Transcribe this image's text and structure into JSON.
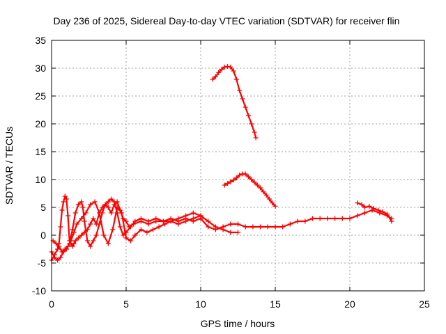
{
  "chart_data": {
    "type": "scatter",
    "title": "Day 236 of 2025, Sidereal Day-to-day VTEC variation (SDTVAR) for receiver flin",
    "xlabel": "GPS time / hours",
    "ylabel": "SDTVAR / TECUs",
    "xlim": [
      0,
      25
    ],
    "ylim": [
      -10,
      35
    ],
    "xticks": [
      0,
      5,
      10,
      15,
      20,
      25
    ],
    "yticks": [
      -10,
      -5,
      0,
      5,
      10,
      15,
      20,
      25,
      30,
      35
    ],
    "xtick_labels": [
      "0",
      "5",
      "10",
      "15",
      "20",
      "25"
    ],
    "ytick_labels": [
      "-10",
      "-5",
      "0",
      "5",
      "10",
      "15",
      "20",
      "25",
      "30",
      "35"
    ],
    "grid": true,
    "marker": "+",
    "color": "#ff0000",
    "series": [
      {
        "name": "track-1",
        "x": [
          0.0,
          0.2,
          0.4,
          0.5,
          0.6,
          0.7,
          0.8,
          0.9,
          1.0,
          1.1,
          1.2,
          1.3,
          1.4,
          1.5,
          1.6,
          1.8,
          2.0,
          2.2,
          2.4,
          2.6,
          2.8,
          3.0,
          3.2,
          3.4,
          3.6,
          3.8,
          4.0,
          4.2,
          4.4,
          4.6,
          4.8,
          5.0,
          5.2,
          5.5,
          6.0,
          6.5,
          7.0,
          7.5,
          8.0,
          8.5,
          9.0,
          9.5,
          10.0,
          10.5,
          11.0,
          11.5,
          12.0,
          12.5,
          13.0,
          13.5,
          14.0,
          14.5,
          15.0,
          15.5,
          16.0,
          16.5,
          17.0,
          17.5,
          18.0,
          18.5,
          19.0,
          19.5,
          20.0,
          20.5,
          21.0,
          21.5,
          22.0,
          22.5,
          22.8
        ],
        "y": [
          -4.5,
          -3.5,
          -2.5,
          -1.5,
          1.5,
          4.5,
          6.0,
          7.0,
          6.5,
          3.5,
          -1.0,
          -1.5,
          -2.0,
          -1.5,
          -1.0,
          -0.5,
          0.0,
          0.5,
          1.0,
          2.0,
          3.0,
          2.0,
          4.0,
          5.0,
          5.5,
          5.0,
          4.0,
          5.5,
          6.0,
          4.5,
          3.0,
          2.5,
          1.5,
          2.0,
          2.5,
          2.0,
          2.5,
          2.5,
          3.0,
          2.5,
          3.0,
          2.5,
          3.0,
          1.5,
          1.0,
          1.5,
          2.0,
          2.0,
          1.5,
          1.5,
          1.5,
          1.5,
          1.5,
          1.5,
          2.0,
          2.5,
          2.5,
          3.0,
          3.0,
          3.0,
          3.0,
          3.0,
          3.0,
          3.5,
          4.0,
          4.5,
          4.0,
          3.5,
          3.0
        ]
      },
      {
        "name": "track-2",
        "x": [
          0.0,
          0.2,
          0.4,
          0.6,
          0.8,
          1.0,
          1.2,
          1.4,
          1.6,
          1.8,
          2.0,
          2.1,
          2.2,
          2.4,
          2.6,
          2.8,
          3.0,
          3.2,
          3.4,
          3.6,
          3.8,
          4.0,
          4.2,
          4.4,
          4.6,
          4.8,
          5.0,
          5.3,
          5.6,
          6.0,
          6.5,
          7.0,
          7.5,
          8.0,
          8.5,
          9.0,
          9.5,
          10.0,
          10.5,
          11.0,
          11.5,
          12.0,
          12.5
        ],
        "y": [
          -3.0,
          -4.0,
          -4.5,
          -4.0,
          -3.0,
          -2.5,
          -1.5,
          1.0,
          4.0,
          5.5,
          6.0,
          5.0,
          2.5,
          -1.0,
          -2.0,
          -1.0,
          0.0,
          2.0,
          4.0,
          5.5,
          6.0,
          6.5,
          6.0,
          4.0,
          1.5,
          0.0,
          0.5,
          1.5,
          2.5,
          3.0,
          2.5,
          3.0,
          2.5,
          2.5,
          2.0,
          2.5,
          3.0,
          3.5,
          2.5,
          1.5,
          1.0,
          0.5,
          0.5
        ]
      },
      {
        "name": "track-3",
        "x": [
          0.1,
          0.3,
          0.5,
          0.7,
          0.9,
          1.1,
          1.3,
          1.5,
          1.7,
          2.0,
          2.3,
          2.6,
          2.9,
          3.2,
          3.5,
          3.8,
          4.1,
          4.4,
          4.7,
          5.0,
          5.3,
          5.6,
          6.0,
          6.4,
          6.8,
          7.2,
          7.6,
          8.0,
          8.5,
          9.0,
          9.5,
          10.0
        ],
        "y": [
          -1.0,
          -1.5,
          -2.0,
          -3.0,
          -2.5,
          -2.0,
          -1.0,
          0.5,
          2.0,
          3.0,
          4.0,
          5.5,
          6.0,
          4.0,
          0.0,
          -1.5,
          1.0,
          5.0,
          4.0,
          -0.5,
          -1.0,
          0.0,
          1.0,
          0.5,
          1.0,
          1.5,
          2.0,
          2.5,
          3.0,
          3.5,
          4.0,
          3.5
        ]
      },
      {
        "name": "track-4",
        "x": [
          10.8,
          11.0,
          11.2,
          11.4,
          11.6,
          11.8,
          12.0,
          12.2,
          12.4,
          12.6,
          12.8,
          13.0,
          13.2,
          13.4,
          13.6,
          13.7
        ],
        "y": [
          28.0,
          28.5,
          29.2,
          29.8,
          30.2,
          30.3,
          30.2,
          29.5,
          28.0,
          26.0,
          24.5,
          23.0,
          21.5,
          20.0,
          18.5,
          17.5
        ]
      },
      {
        "name": "track-5",
        "x": [
          11.6,
          11.8,
          12.0,
          12.2,
          12.4,
          12.6,
          12.8,
          13.0,
          13.2,
          13.4,
          13.6,
          13.8,
          14.0,
          14.2,
          14.4,
          14.6,
          14.8,
          15.0
        ],
        "y": [
          9.0,
          9.3,
          9.6,
          9.9,
          10.3,
          10.8,
          11.0,
          11.0,
          10.5,
          10.0,
          9.5,
          9.0,
          8.5,
          7.8,
          7.2,
          6.5,
          5.8,
          5.2
        ]
      },
      {
        "name": "track-6",
        "x": [
          20.5,
          20.8,
          21.0,
          21.3,
          21.6,
          21.9,
          22.2,
          22.5,
          22.8
        ],
        "y": [
          5.8,
          5.5,
          5.0,
          5.2,
          4.8,
          4.5,
          4.2,
          3.8,
          2.5
        ]
      }
    ]
  }
}
